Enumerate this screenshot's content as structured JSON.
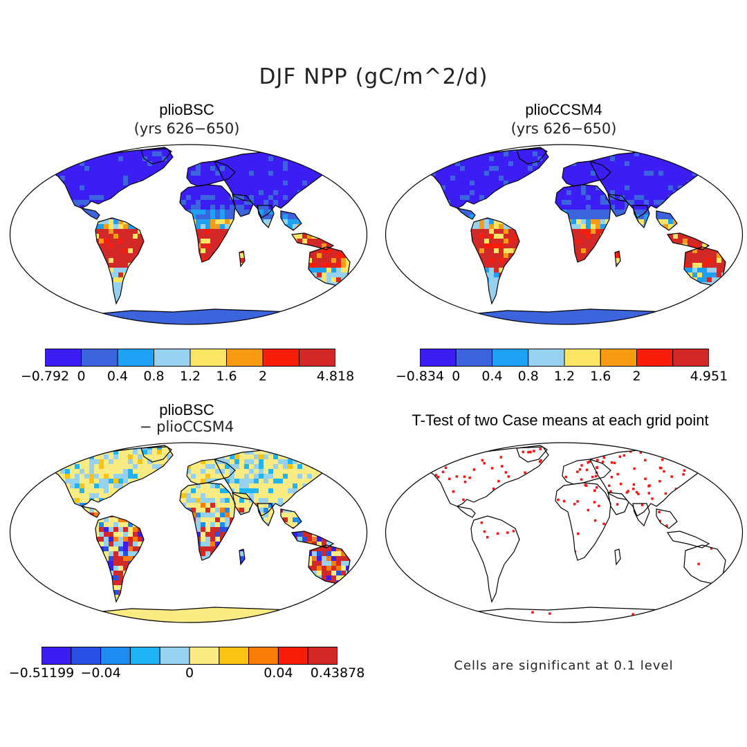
{
  "figure": {
    "title": "DJF NPP (gC/m^2/d)",
    "note": "Cells are significant at 0.1 level"
  },
  "panels": [
    {
      "id": "bsc",
      "title": "plioBSC",
      "subtitle": "(yrs 626−650)",
      "colorbar": {
        "colors": [
          "#3c1ef5",
          "#3c64dc",
          "#1ea0f5",
          "#96d2f0",
          "#fae664",
          "#fa9b14",
          "#fa1e0a",
          "#d22828"
        ],
        "labels": [
          "−0.792",
          "0",
          "0.4",
          "0.8",
          "1.2",
          "1.6",
          "2",
          "4.818"
        ]
      }
    },
    {
      "id": "ccsm4",
      "title": "plioCCSM4",
      "subtitle": "(yrs 626−650)",
      "colorbar": {
        "colors": [
          "#3c1ef5",
          "#3c64dc",
          "#1ea0f5",
          "#96d2f0",
          "#fae664",
          "#fa9b14",
          "#fa1e0a",
          "#d22828"
        ],
        "labels": [
          "−0.834",
          "0",
          "0.4",
          "0.8",
          "1.2",
          "1.6",
          "2",
          "4.951"
        ]
      }
    },
    {
      "id": "diff",
      "title": "plioBSC",
      "subtitle": "− plioCCSM4",
      "colorbar": {
        "colors": [
          "#3c1ef5",
          "#2850e6",
          "#1e8cf0",
          "#1eb4f5",
          "#96d2f0",
          "#faeb82",
          "#fac314",
          "#fa7d0a",
          "#fa1e0a",
          "#d22828"
        ],
        "labels": [
          "−0.51199",
          "−0.04",
          "0",
          "0.04",
          "0.43878"
        ]
      }
    },
    {
      "id": "ttest",
      "title": "T-Test of two Case means at each grid point",
      "subtitle": ""
    }
  ]
}
